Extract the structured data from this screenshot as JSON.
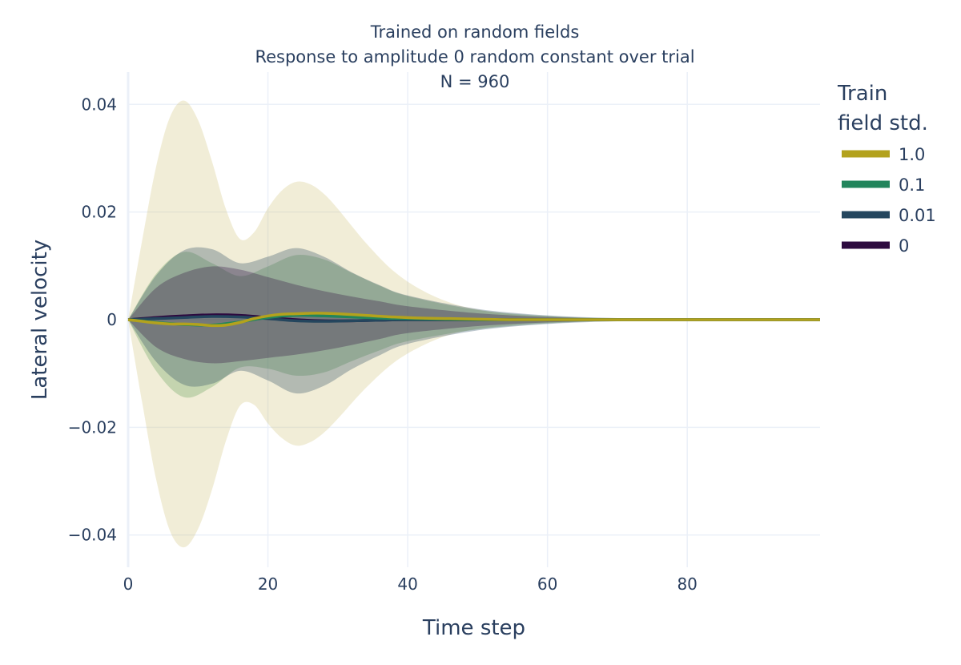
{
  "chart_data": {
    "type": "line",
    "title_lines": [
      "Trained on random fields",
      "Response to amplitude 0 random constant over trial",
      "N = 960"
    ],
    "xlabel": "Time step",
    "ylabel": "Lateral velocity",
    "xlim": [
      0,
      99
    ],
    "ylim": [
      -0.046,
      0.046
    ],
    "x_ticks": [
      0,
      20,
      40,
      60,
      80
    ],
    "y_ticks": [
      0.04,
      0.02,
      0,
      -0.02,
      -0.04
    ],
    "y_tick_labels": [
      "0.04",
      "0.02",
      "0",
      "−0.02",
      "−0.04"
    ],
    "grid": true,
    "legend": {
      "title_lines": [
        "Train",
        "field std."
      ],
      "position": "right"
    },
    "series": [
      {
        "name": "0",
        "color": "#2d0a3f",
        "band_color": "#2d0a3f",
        "x": [
          0,
          4,
          8,
          12,
          16,
          20,
          24,
          28,
          32,
          36,
          40,
          50,
          60,
          70,
          80,
          99
        ],
        "mean": [
          0,
          0.0004,
          0.0007,
          0.0009,
          0.0008,
          0.0004,
          0.0,
          -0.0002,
          -0.0002,
          -0.0001,
          0,
          0,
          0,
          0,
          0,
          0
        ],
        "band": [
          0,
          0.0055,
          0.008,
          0.009,
          0.0085,
          0.0075,
          0.0065,
          0.0055,
          0.0045,
          0.0035,
          0.0025,
          0.0012,
          0.0005,
          0.0002,
          0.0001,
          0
        ]
      },
      {
        "name": "0.01",
        "color": "#24465e",
        "band_color": "#24465e",
        "x": [
          0,
          4,
          8,
          12,
          16,
          20,
          24,
          28,
          32,
          36,
          40,
          50,
          60,
          70,
          80,
          99
        ],
        "mean": [
          0,
          0.0002,
          0.0004,
          0.0006,
          0.0005,
          0.0002,
          -0.0002,
          -0.0003,
          -0.0002,
          -0.0001,
          0,
          0,
          0,
          0,
          0,
          0
        ],
        "band": [
          0,
          0.008,
          0.0125,
          0.0125,
          0.01,
          0.0115,
          0.0135,
          0.012,
          0.009,
          0.0065,
          0.0045,
          0.002,
          0.0008,
          0.0003,
          0.0001,
          0
        ]
      },
      {
        "name": "0.1",
        "color": "#22855c",
        "band_color": "#5d9a54",
        "x": [
          0,
          4,
          8,
          12,
          16,
          20,
          24,
          28,
          32,
          36,
          40,
          50,
          60,
          70,
          80,
          99
        ],
        "mean": [
          0,
          -0.0005,
          -0.0009,
          -0.001,
          -0.0004,
          0.0004,
          0.0008,
          0.0007,
          0.0005,
          0.0003,
          0.0002,
          0,
          0,
          0,
          0,
          0
        ],
        "band": [
          0,
          0.009,
          0.0135,
          0.0115,
          0.0085,
          0.0095,
          0.0112,
          0.0105,
          0.0082,
          0.006,
          0.0042,
          0.0018,
          0.0007,
          0.0002,
          0.0001,
          0
        ]
      },
      {
        "name": "1.0",
        "color": "#b3a21d",
        "band_color": "#cfc47a",
        "x": [
          0,
          2,
          4,
          6,
          8,
          10,
          12,
          14,
          16,
          18,
          20,
          22,
          24,
          26,
          28,
          30,
          34,
          38,
          42,
          46,
          50,
          55,
          60,
          70,
          80,
          99
        ],
        "mean": [
          0,
          -0.0003,
          -0.0006,
          -0.0008,
          -0.0008,
          -0.0009,
          -0.0011,
          -0.001,
          -0.0005,
          0.0002,
          0.0007,
          0.001,
          0.0011,
          0.0012,
          0.0012,
          0.0011,
          0.0008,
          0.0005,
          0.0003,
          0.0002,
          0.0001,
          0,
          0,
          0,
          0,
          0
        ],
        "band": [
          0,
          0.015,
          0.029,
          0.0385,
          0.0415,
          0.038,
          0.0305,
          0.0215,
          0.0155,
          0.016,
          0.02,
          0.023,
          0.0245,
          0.024,
          0.0222,
          0.0195,
          0.0135,
          0.0085,
          0.0052,
          0.003,
          0.0018,
          0.001,
          0.0006,
          0.0002,
          0.0001,
          0
        ]
      }
    ],
    "legend_order": [
      "1.0",
      "0.1",
      "0.01",
      "0"
    ]
  }
}
